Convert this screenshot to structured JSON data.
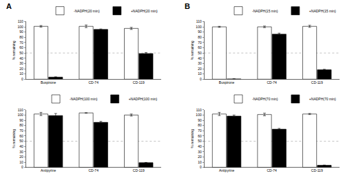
{
  "chart_data": [
    {
      "type": "bar",
      "title": "A",
      "y_label": "% remaining",
      "categories": [
        "Buspirone",
        "CD-74",
        "CD-119"
      ],
      "series": [
        {
          "name": "-NADPH(20 min)",
          "color": "#ffffff",
          "values": [
            101,
            101,
            97
          ],
          "errors": [
            1.5,
            2.5,
            2
          ]
        },
        {
          "name": "+NADPH(20 min)",
          "color": "#000000",
          "values": [
            4,
            95,
            49
          ],
          "errors": [
            0.5,
            1,
            2
          ]
        }
      ],
      "ylim": [
        0,
        110
      ],
      "yticks": [
        0,
        10,
        20,
        30,
        40,
        50,
        60,
        70,
        80,
        90,
        100,
        110
      ],
      "hline": 50,
      "legend": "top right"
    },
    {
      "type": "bar",
      "y_label": "% remaining",
      "categories": [
        "Antipyrine",
        "CD-74",
        "CD-119"
      ],
      "series": [
        {
          "name": "-NADPH(100 min)",
          "color": "#ffffff",
          "values": [
            102,
            104,
            100
          ],
          "errors": [
            3,
            0.5,
            2
          ]
        },
        {
          "name": "+NADPH(100 min)",
          "color": "#000000",
          "values": [
            99,
            86,
            9
          ],
          "errors": [
            4,
            2,
            0.5
          ]
        }
      ],
      "ylim": [
        0,
        110
      ],
      "yticks": [
        0,
        10,
        20,
        30,
        40,
        50,
        60,
        70,
        80,
        90,
        100,
        110
      ],
      "hline": 50,
      "legend": "top right"
    },
    {
      "type": "bar",
      "title": "B",
      "y_label": "% remaining",
      "categories": [
        "Buspirone",
        "CD-74",
        "CD-119"
      ],
      "series": [
        {
          "name": "-NADPH(15 min)",
          "color": "#ffffff",
          "values": [
            100,
            100,
            101
          ],
          "errors": [
            1,
            1.5,
            2
          ]
        },
        {
          "name": "+NADPH(15 min)",
          "color": "#000000",
          "values": [
            0.5,
            86,
            18
          ],
          "errors": [
            0.2,
            2,
            1
          ]
        }
      ],
      "ylim": [
        0,
        110
      ],
      "yticks": [
        0,
        10,
        20,
        30,
        40,
        50,
        60,
        70,
        80,
        90,
        100,
        110
      ],
      "hline": 50,
      "legend": "top right"
    },
    {
      "type": "bar",
      "y_label": "% remaining",
      "categories": [
        "Antipyrine",
        "CD-74",
        "CD-119"
      ],
      "series": [
        {
          "name": "-NADPH(70 min)",
          "color": "#ffffff",
          "values": [
            102,
            101,
            102
          ],
          "errors": [
            3,
            2.5,
            1
          ]
        },
        {
          "name": "+NADPH(70 min)",
          "color": "#000000",
          "values": [
            98,
            73,
            4
          ],
          "errors": [
            2,
            1.5,
            0.5
          ]
        }
      ],
      "ylim": [
        0,
        110
      ],
      "yticks": [
        0,
        10,
        20,
        30,
        40,
        50,
        60,
        70,
        80,
        90,
        100,
        110
      ],
      "hline": 50,
      "legend": "top right"
    }
  ]
}
